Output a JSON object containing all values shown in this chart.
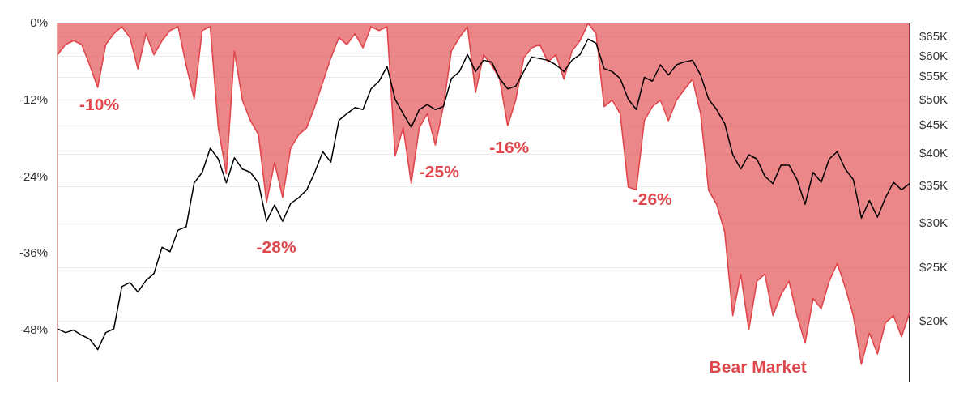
{
  "chart_data": {
    "type": "area",
    "categories": [
      null,
      null,
      null,
      null,
      null,
      null,
      null,
      null,
      null,
      null,
      null,
      null,
      null,
      null,
      null,
      null,
      null,
      null,
      null,
      null,
      null,
      null,
      null,
      null,
      null,
      null,
      null,
      null,
      null,
      null,
      null,
      null,
      null,
      null,
      null,
      null,
      null,
      null,
      null,
      null,
      null,
      null,
      null,
      null,
      null,
      null,
      null,
      null,
      null,
      null,
      null,
      null,
      null,
      null,
      null,
      null,
      null,
      null,
      null,
      null,
      null,
      null,
      null,
      null,
      null,
      null,
      null,
      null,
      null,
      null,
      null,
      null,
      null,
      null,
      null,
      null,
      null,
      null,
      null,
      null,
      null,
      null,
      null,
      null,
      null,
      null,
      null,
      null,
      null,
      null,
      null,
      null,
      null,
      null,
      null,
      null,
      null,
      null,
      null,
      null,
      null,
      null,
      null,
      null,
      null,
      null,
      null
    ],
    "series": [
      {
        "color": "#e0474c",
        "values": [
          -4.9,
          -3.3,
          -2.7,
          -3.3,
          -6.5,
          -10,
          -3.3,
          -1.6,
          -0.5,
          -2.2,
          -7.1,
          -1.6,
          -4.9,
          -2.7,
          -1.1,
          -0.5,
          -6.5,
          -11.8,
          -1.1,
          -0.5,
          -16.3,
          -23.5,
          -4.3,
          -12,
          -15.2,
          -17.4,
          -28,
          -21.7,
          -27.2,
          -19.5,
          -17.4,
          -16.3,
          -13,
          -9.2,
          -5.4,
          -2.2,
          -3.3,
          -1.6,
          -3.8,
          -0.5,
          -1.1,
          -0.5,
          -20.7,
          -16.3,
          -25,
          -16.3,
          -14.1,
          -19,
          -13,
          -4.3,
          -2.2,
          -0.5,
          -10.8,
          -4.9,
          -6.5,
          -8.7,
          -16,
          -12,
          -5.4,
          -3.8,
          -3.3,
          -6,
          -4.9,
          -8.7,
          -4.3,
          -2.7,
          0,
          -1.6,
          -13,
          -12,
          -14.1,
          -25.6,
          -26,
          -15.2,
          -13,
          -12,
          -15.2,
          -12,
          -10.3,
          -8.7,
          -14.1,
          -26.1,
          -28.3,
          -32.6,
          -45.7,
          -39.2,
          -47.9,
          -40.3,
          -39.2,
          -45.7,
          -42.4,
          -40.3,
          -45.7,
          -50,
          -43,
          -44.6,
          -40.3,
          -37.5,
          -41.3,
          -45.7,
          -53.3,
          -48.4,
          -51.7,
          -46.8,
          -45.7,
          -49,
          -45.2
        ]
      },
      {
        "type": "line",
        "axis": "y2",
        "color": "#000000",
        "values": [
          19400,
          19100,
          19300,
          18900,
          18600,
          17800,
          19100,
          19400,
          23100,
          23500,
          22600,
          23700,
          24400,
          27200,
          26700,
          29200,
          29600,
          35500,
          37100,
          41000,
          39200,
          35500,
          39400,
          37600,
          37100,
          35500,
          30300,
          32400,
          30300,
          32600,
          33400,
          34500,
          37100,
          40400,
          38700,
          46000,
          47300,
          48500,
          48100,
          52400,
          54100,
          57500,
          50200,
          47300,
          44700,
          48100,
          49100,
          48100,
          48700,
          54700,
          56300,
          60400,
          56300,
          59000,
          58600,
          54700,
          52400,
          53000,
          56300,
          59800,
          59400,
          59000,
          57900,
          56300,
          59000,
          60400,
          64400,
          63300,
          57000,
          56300,
          54700,
          50200,
          48100,
          55000,
          54100,
          57900,
          55500,
          57900,
          58600,
          59000,
          55500,
          50200,
          48100,
          45400,
          39900,
          37600,
          39900,
          39200,
          36500,
          35400,
          38200,
          38200,
          36000,
          32500,
          37100,
          35600,
          39200,
          40400,
          37600,
          36000,
          30700,
          33000,
          30800,
          33400,
          35600,
          34500,
          35400
        ]
      }
    ],
    "ylim": [
      -56,
      0
    ],
    "yticks": [
      {
        "value": 0,
        "label": "0%"
      },
      {
        "value": -12,
        "label": "-12%"
      },
      {
        "value": -24,
        "label": "-24%"
      },
      {
        "value": -36,
        "label": "-36%"
      },
      {
        "value": -48,
        "label": "-48%"
      }
    ],
    "y2lim": [
      15600,
      68700
    ],
    "y2ticks": [
      {
        "value": 65000,
        "label": "$65K"
      },
      {
        "value": 60000,
        "label": "$60K"
      },
      {
        "value": 55000,
        "label": "$55K"
      },
      {
        "value": 50000,
        "label": "$50K"
      },
      {
        "value": 45000,
        "label": "$45K"
      },
      {
        "value": 40000,
        "label": "$40K"
      },
      {
        "value": 35000,
        "label": "$35K"
      },
      {
        "value": 30000,
        "label": "$30K"
      },
      {
        "value": 25000,
        "label": "$25K"
      },
      {
        "value": 20000,
        "label": "$20K"
      }
    ],
    "log": "y2",
    "grid": "y2",
    "marker": "none",
    "line_style": "solid",
    "annotations": [
      {
        "text": "-10%",
        "y": -10
      },
      {
        "text": "-28%",
        "y": -28
      },
      "-25%",
      {
        "text": "-16%",
        "y": -16
      },
      "-26%",
      "Bear Market"
    ]
  }
}
